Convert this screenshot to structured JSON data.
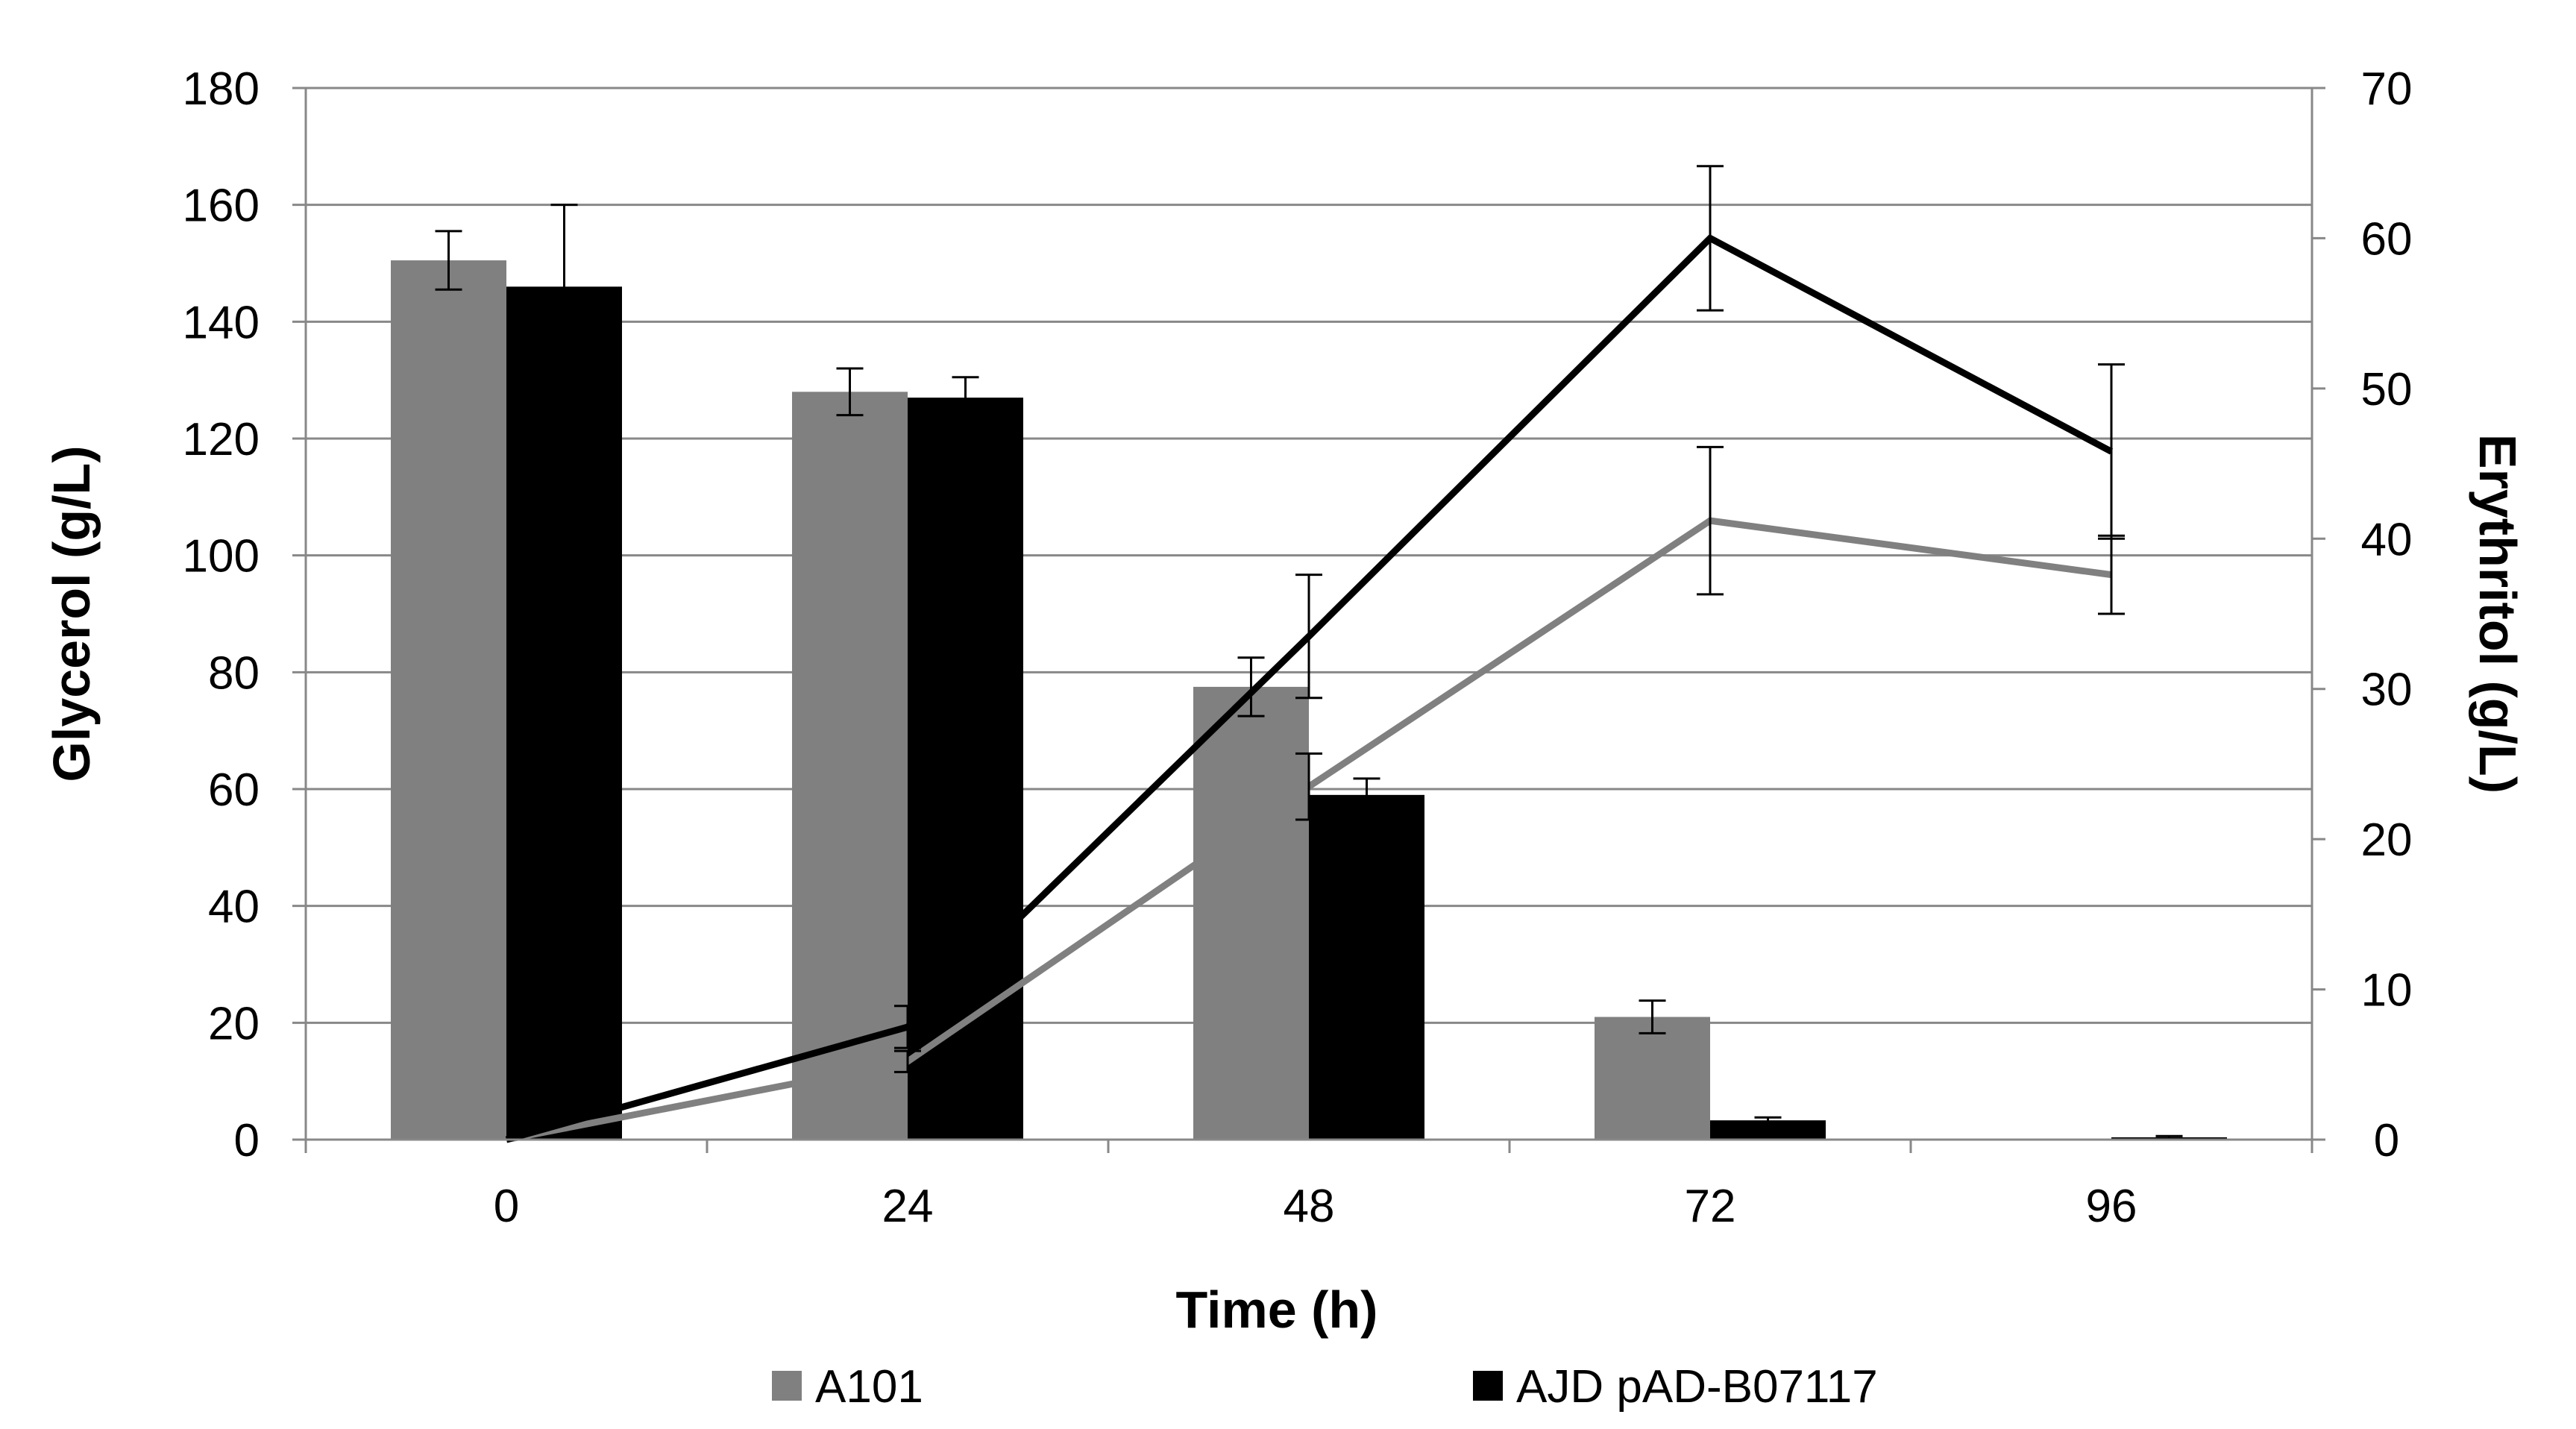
{
  "chart_data": {
    "type": "bar",
    "title": "",
    "xlabel": "Time (h)",
    "ylabel": "Glycerol (g/L)",
    "y2label": "Erythritol (g/L)",
    "categories": [
      "0",
      "24",
      "48",
      "72",
      "96"
    ],
    "ylim": [
      0,
      180
    ],
    "yticks": [
      0,
      20,
      40,
      60,
      80,
      100,
      120,
      140,
      160,
      180
    ],
    "y2lim": [
      0,
      70
    ],
    "y2ticks": [
      0,
      10,
      20,
      30,
      40,
      50,
      60,
      70
    ],
    "grid": true,
    "legend_position": "bottom",
    "bar_series": [
      {
        "name": "A101",
        "axis": "left",
        "color": "#808080",
        "values": [
          150.5,
          128,
          77.5,
          21,
          0
        ],
        "errors": [
          5,
          4,
          5,
          2.8,
          0
        ]
      },
      {
        "name": "AJD pAD-B07117",
        "axis": "left",
        "color": "#000000",
        "values": [
          146,
          127,
          59,
          3.3,
          0.4
        ],
        "errors": [
          14,
          3.5,
          2.8,
          0.5,
          0.2
        ]
      }
    ],
    "line_series": [
      {
        "name": "A101 erythritol",
        "axis": "right",
        "color": "#808080",
        "values": [
          0,
          5.2,
          23.5,
          41.2,
          37.6
        ],
        "errors": [
          0,
          0.7,
          2.2,
          4.9,
          2.6
        ]
      },
      {
        "name": "AJD pAD-B07117 erythritol",
        "axis": "right",
        "color": "#000000",
        "values": [
          0,
          7.5,
          33.5,
          60,
          45.8
        ],
        "errors": [
          0,
          1.4,
          4.1,
          4.8,
          5.8
        ]
      }
    ]
  }
}
